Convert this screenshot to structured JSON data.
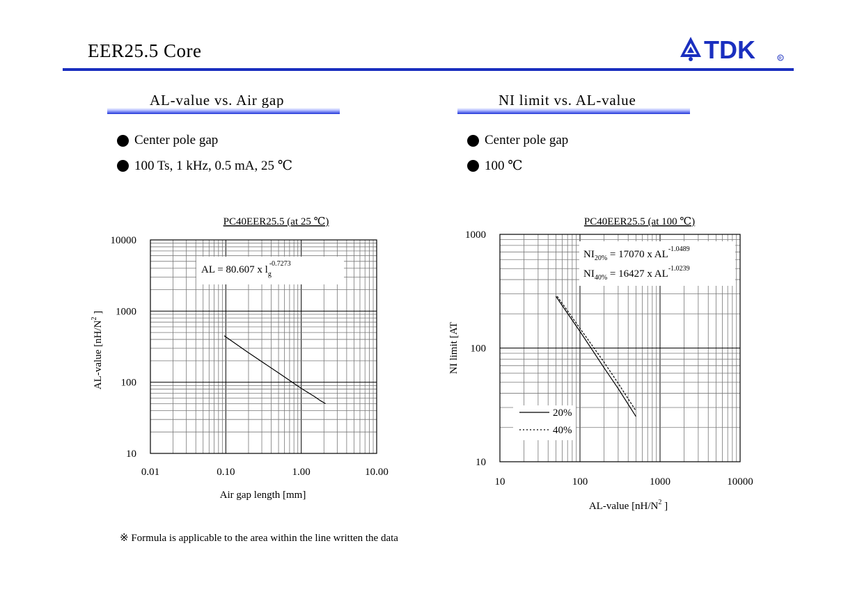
{
  "page": {
    "title": "EER25.5  Core",
    "logo_text": "TDK",
    "accent_color": "#1a2fbf"
  },
  "sections": [
    {
      "title": "AL-value vs. Air gap",
      "bullets": [
        "Center pole gap",
        "100 Ts,  1 kHz,  0.5 mA,  25 ℃"
      ]
    },
    {
      "title": "NI limit vs. AL-value",
      "bullets": [
        "Center pole gap",
        "100 ℃"
      ]
    }
  ],
  "footnote": "※ Formula is applicable to the area within the line written the data",
  "chart_data": [
    {
      "type": "line",
      "title": "PC40EER25.5 (at 25 ℃)",
      "xlabel": "Air gap length [mm]",
      "ylabel": "AL-value [nH/N",
      "ylabel_sup": "2",
      "ylabel_end": " ]",
      "x_scale": "log",
      "y_scale": "log",
      "xlim": [
        0.01,
        10
      ],
      "ylim": [
        10,
        10000
      ],
      "x_ticks": [
        "0.01",
        "0.10",
        "1.00",
        "10.00"
      ],
      "y_ticks": [
        "10",
        "100",
        "1000",
        "10000"
      ],
      "grid": true,
      "annotation": {
        "main": "AL = 80.607 x  l",
        "sub": "g",
        "sup": "-0.7273"
      },
      "series": [
        {
          "style": "solid",
          "x": [
            0.095,
            0.2,
            0.5,
            1.0,
            1.5,
            1.8,
            2.1
          ],
          "y": [
            450,
            260,
            135,
            82,
            63,
            55,
            50
          ]
        }
      ]
    },
    {
      "type": "line",
      "title": "PC40EER25.5 (at 100 ℃)",
      "xlabel": "AL-value [nH/N",
      "xlabel_sup": "2",
      "xlabel_end": " ]",
      "ylabel": "NI limit [AT",
      "x_scale": "log",
      "y_scale": "log",
      "xlim": [
        10,
        10000
      ],
      "ylim": [
        10,
        1000
      ],
      "x_ticks": [
        "10",
        "100",
        "1000",
        "10000"
      ],
      "y_ticks": [
        "10",
        "100",
        "1000"
      ],
      "grid": true,
      "annotations": [
        {
          "main": "NI",
          "sub": "20%",
          "rest": " = 17070 x AL",
          "sup": "-1.0489"
        },
        {
          "main": "NI",
          "sub": "40%",
          "rest": " = 16427 x AL",
          "sup": "-1.0239"
        }
      ],
      "legend": {
        "position": "bottom-left"
      },
      "series": [
        {
          "name": "20%",
          "style": "solid",
          "x": [
            50,
            100,
            200,
            300,
            500
          ],
          "y": [
            285,
            140,
            67,
            44,
            25
          ]
        },
        {
          "name": "40%",
          "style": "dotted",
          "x": [
            52,
            100,
            200,
            300,
            500
          ],
          "y": [
            285,
            149,
            75,
            49,
            28
          ]
        }
      ]
    }
  ]
}
